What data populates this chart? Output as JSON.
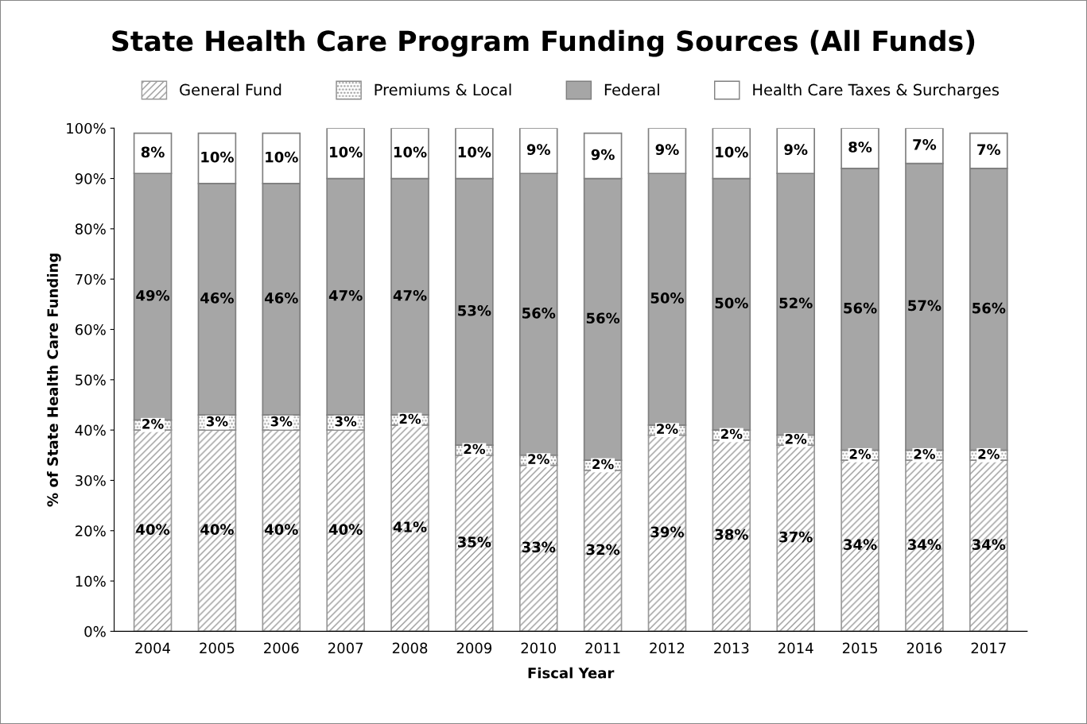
{
  "chart_data": {
    "type": "bar",
    "stacked": true,
    "title": "State Health Care Program Funding Sources (All Funds)",
    "xlabel": "Fiscal Year",
    "ylabel": "% of State Health Care Funding",
    "categories": [
      "2004",
      "2005",
      "2006",
      "2007",
      "2008",
      "2009",
      "2010",
      "2011",
      "2012",
      "2013",
      "2014",
      "2015",
      "2016",
      "2017"
    ],
    "series": [
      {
        "name": "General Fund",
        "color": "#999999",
        "values": [
          40,
          40,
          40,
          40,
          41,
          35,
          33,
          32,
          39,
          38,
          37,
          34,
          34,
          34
        ],
        "value_labels": [
          "40%",
          "40%",
          "40%",
          "40%",
          "41%",
          "35%",
          "33%",
          "32%",
          "39%",
          "38%",
          "37%",
          "34%",
          "34%",
          "34%"
        ]
      },
      {
        "name": "Premiums & Local",
        "color": "#8c8c8c",
        "values": [
          2,
          3,
          3,
          3,
          2,
          2,
          2,
          2,
          2,
          2,
          2,
          2,
          2,
          2
        ],
        "value_labels": [
          "2%",
          "3%",
          "3%",
          "3%",
          "2%",
          "2%",
          "2%",
          "2%",
          "2%",
          "2%",
          "2%",
          "2%",
          "2%",
          "2%"
        ]
      },
      {
        "name": "Federal",
        "color": "#a6a6a6",
        "values": [
          49,
          46,
          46,
          47,
          47,
          53,
          56,
          56,
          50,
          50,
          52,
          56,
          57,
          56
        ],
        "value_labels": [
          "49%",
          "46%",
          "46%",
          "47%",
          "47%",
          "53%",
          "56%",
          "56%",
          "50%",
          "50%",
          "52%",
          "56%",
          "57%",
          "56%"
        ]
      },
      {
        "name": "Health Care Taxes & Surcharges",
        "color": "#ffffff",
        "values": [
          8,
          10,
          10,
          10,
          10,
          10,
          9,
          9,
          9,
          10,
          9,
          8,
          7,
          7
        ],
        "value_labels": [
          "8%",
          "10%",
          "10%",
          "10%",
          "10%",
          "10%",
          "9%",
          "9%",
          "9%",
          "10%",
          "9%",
          "8%",
          "7%",
          "7%"
        ]
      }
    ],
    "ylim": [
      0,
      100
    ],
    "yticks": [
      {
        "value": 0,
        "label": "0%"
      },
      {
        "value": 10,
        "label": "10%"
      },
      {
        "value": 20,
        "label": "20%"
      },
      {
        "value": 30,
        "label": "30%"
      },
      {
        "value": 40,
        "label": "40%"
      },
      {
        "value": 50,
        "label": "50%"
      },
      {
        "value": 60,
        "label": "60%"
      },
      {
        "value": 70,
        "label": "70%"
      },
      {
        "value": 80,
        "label": "80%"
      },
      {
        "value": 90,
        "label": "90%"
      },
      {
        "value": 100,
        "label": "100%"
      }
    ],
    "legend": "top",
    "grid": false
  }
}
